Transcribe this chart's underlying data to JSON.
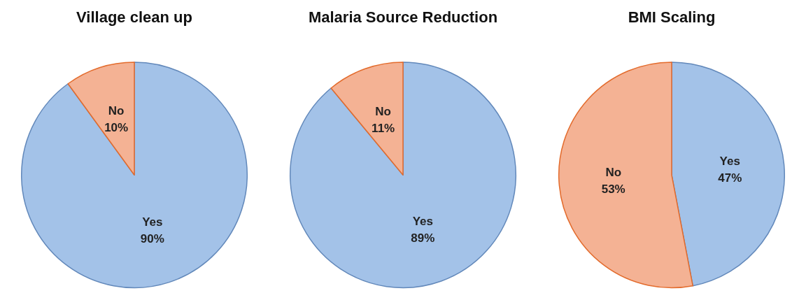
{
  "chart_data": [
    {
      "type": "pie",
      "title": "Village clean up",
      "categories": [
        "Yes",
        "No"
      ],
      "values": [
        90,
        10
      ],
      "value_labels": [
        "90%",
        "10%"
      ],
      "colors": [
        "#a3c2e8",
        "#f4b294"
      ],
      "legend": false
    },
    {
      "type": "pie",
      "title": "Malaria Source Reduction",
      "categories": [
        "Yes",
        "No"
      ],
      "values": [
        89,
        11
      ],
      "value_labels": [
        "89%",
        "11%"
      ],
      "colors": [
        "#a3c2e8",
        "#f4b294"
      ],
      "legend": false
    },
    {
      "type": "pie",
      "title": "BMI Scaling",
      "categories": [
        "Yes",
        "No"
      ],
      "values": [
        47,
        53
      ],
      "value_labels": [
        "47%",
        "53%"
      ],
      "colors": [
        "#a3c2e8",
        "#f4b294"
      ],
      "legend": false
    }
  ]
}
